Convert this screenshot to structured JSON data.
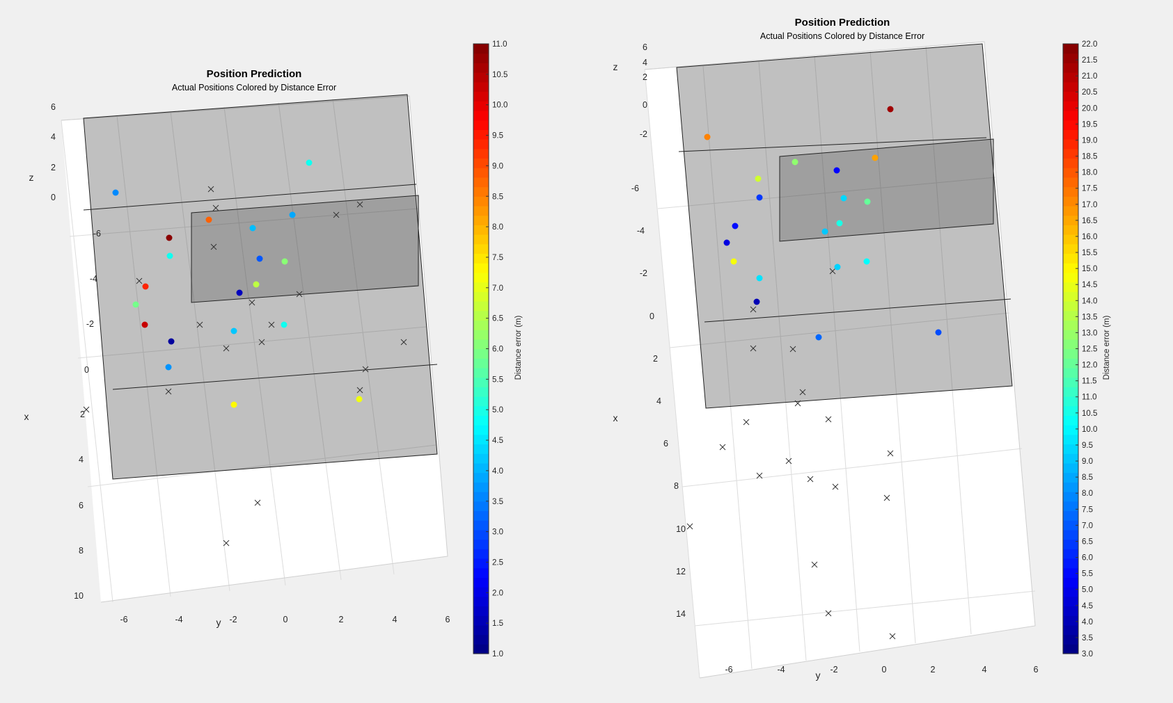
{
  "chart_data": [
    {
      "type": "scatter",
      "title": "Position Prediction",
      "subtitle": "Actual Positions Colored by Distance Error",
      "xlabel": "x",
      "ylabel": "y",
      "zlabel": "z",
      "colorbar_label": "Distance error (m)",
      "colorbar_range": [
        1.0,
        11.0
      ],
      "colorbar_ticks": [
        "1.0",
        "1.5",
        "2.0",
        "2.5",
        "3.0",
        "3.5",
        "4.0",
        "4.5",
        "5.0",
        "5.5",
        "6.0",
        "6.5",
        "7.0",
        "7.5",
        "8.0",
        "8.5",
        "9.0",
        "9.5",
        "10.0",
        "10.5",
        "11.0"
      ],
      "x_ticks": [
        "10",
        "8",
        "6",
        "4",
        "2",
        "0",
        "-2",
        "-4",
        "-6"
      ],
      "y_ticks": [
        "-6",
        "-4",
        "-2",
        "0",
        "2",
        "4",
        "6"
      ],
      "z_ticks": [
        "6",
        "4",
        "2",
        "0"
      ],
      "actual_points": [
        {
          "error": 3.6
        },
        {
          "error": 4.9
        },
        {
          "error": 8.8
        },
        {
          "error": 3.9
        },
        {
          "error": 4.1
        },
        {
          "error": 10.9
        },
        {
          "error": 4.9
        },
        {
          "error": 3.1
        },
        {
          "error": 6.1
        },
        {
          "error": 9.4
        },
        {
          "error": 6.6
        },
        {
          "error": 1.6
        },
        {
          "error": 5.9
        },
        {
          "error": 10.3
        },
        {
          "error": 4.2
        },
        {
          "error": 1.3
        },
        {
          "error": 4.9
        },
        {
          "error": 3.7
        },
        {
          "error": 7.3
        },
        {
          "error": 7.1
        }
      ],
      "predicted_marker": "x"
    },
    {
      "type": "scatter",
      "title": "Position Prediction",
      "subtitle": "Actual Positions Colored by Distance Error",
      "xlabel": "x",
      "ylabel": "y",
      "zlabel": "z",
      "colorbar_label": "Distance error (m)",
      "colorbar_range": [
        3.0,
        22.0
      ],
      "colorbar_ticks": [
        "3.0",
        "3.5",
        "4.0",
        "4.5",
        "5.0",
        "5.5",
        "6.0",
        "6.5",
        "7.0",
        "7.5",
        "8.0",
        "8.5",
        "9.0",
        "9.5",
        "10.0",
        "10.5",
        "11.0",
        "11.5",
        "12.0",
        "12.5",
        "13.0",
        "13.5",
        "14.0",
        "14.5",
        "15.0",
        "15.5",
        "16.0",
        "16.5",
        "17.0",
        "17.5",
        "18.0",
        "18.5",
        "19.0",
        "19.5",
        "20.0",
        "20.5",
        "21.0",
        "21.5",
        "22.0"
      ],
      "x_ticks": [
        "14",
        "12",
        "10",
        "8",
        "6",
        "4",
        "2",
        "0",
        "-2",
        "-4",
        "-6"
      ],
      "y_ticks": [
        "-6",
        "-4",
        "-2",
        "0",
        "2",
        "4",
        "6"
      ],
      "z_ticks": [
        "6",
        "4",
        "2",
        "0",
        "-2"
      ],
      "actual_points": [
        {
          "error": 17.2
        },
        {
          "error": 21.4
        },
        {
          "error": 12.8
        },
        {
          "error": 5.4
        },
        {
          "error": 16.6
        },
        {
          "error": 14.0
        },
        {
          "error": 6.4
        },
        {
          "error": 9.4
        },
        {
          "error": 12.0
        },
        {
          "error": 5.6
        },
        {
          "error": 10.6
        },
        {
          "error": 9.1
        },
        {
          "error": 4.8
        },
        {
          "error": 14.7
        },
        {
          "error": 9.3
        },
        {
          "error": 10.1
        },
        {
          "error": 9.6
        },
        {
          "error": 4.0
        },
        {
          "error": 7.3
        },
        {
          "error": 6.8
        }
      ],
      "predicted_marker": "x"
    }
  ]
}
